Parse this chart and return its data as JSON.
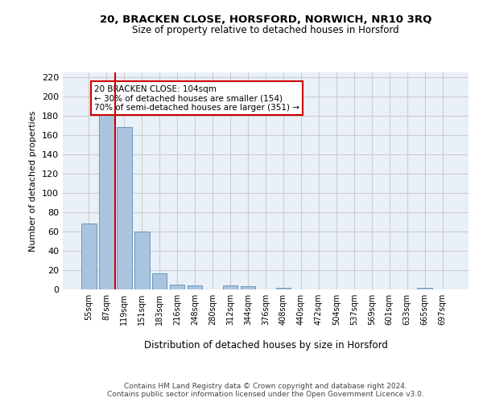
{
  "title_line1": "20, BRACKEN CLOSE, HORSFORD, NORWICH, NR10 3RQ",
  "title_line2": "Size of property relative to detached houses in Horsford",
  "xlabel": "Distribution of detached houses by size in Horsford",
  "ylabel": "Number of detached properties",
  "categories": [
    "55sqm",
    "87sqm",
    "119sqm",
    "151sqm",
    "183sqm",
    "216sqm",
    "248sqm",
    "280sqm",
    "312sqm",
    "344sqm",
    "376sqm",
    "408sqm",
    "440sqm",
    "472sqm",
    "504sqm",
    "537sqm",
    "569sqm",
    "601sqm",
    "633sqm",
    "665sqm",
    "697sqm"
  ],
  "values": [
    68,
    183,
    168,
    60,
    17,
    5,
    4,
    0,
    4,
    3,
    0,
    2,
    0,
    0,
    0,
    0,
    0,
    0,
    0,
    2,
    0
  ],
  "bar_color": "#aac4e0",
  "bar_edge_color": "#6699bb",
  "red_line_color": "#cc0000",
  "annotation_text": "20 BRACKEN CLOSE: 104sqm\n← 30% of detached houses are smaller (154)\n70% of semi-detached houses are larger (351) →",
  "annotation_box_color": "#ffffff",
  "annotation_box_edge": "#cc0000",
  "ylim": [
    0,
    225
  ],
  "yticks": [
    0,
    20,
    40,
    60,
    80,
    100,
    120,
    140,
    160,
    180,
    200,
    220
  ],
  "grid_color": "#cccccc",
  "background_color": "#eaf0f8",
  "footer": "Contains HM Land Registry data © Crown copyright and database right 2024.\nContains public sector information licensed under the Open Government Licence v3.0."
}
